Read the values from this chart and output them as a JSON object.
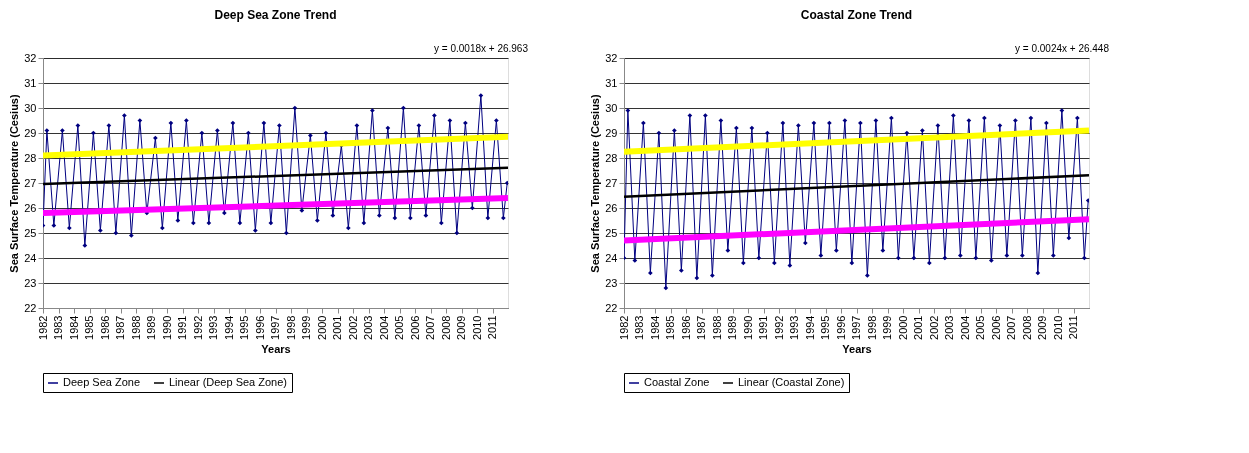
{
  "chart_data": [
    {
      "type": "line",
      "title": "Deep Sea Zone Trend",
      "xlabel": "Years",
      "ylabel": "Sea Surface Temperature (Cesius)",
      "annotations": [
        "y = 0.0018x + 26.963"
      ],
      "xlim": [
        1982,
        2012
      ],
      "xticks": [
        1982,
        1983,
        1984,
        1985,
        1986,
        1987,
        1988,
        1989,
        1990,
        1991,
        1992,
        1993,
        1994,
        1995,
        1996,
        1997,
        1998,
        1999,
        2000,
        2001,
        2002,
        2003,
        2004,
        2005,
        2006,
        2007,
        2008,
        2009,
        2010,
        2011
      ],
      "ylim": [
        22,
        32
      ],
      "yticks": [
        22,
        23,
        24,
        25,
        26,
        27,
        28,
        29,
        30,
        31,
        32
      ],
      "grid": "y",
      "legend": "bottom",
      "series": [
        {
          "name": "Deep Sea Zone",
          "color": "#000080",
          "marker": "diamond",
          "x": [
            1982.0,
            1982.25,
            1982.7,
            1983.25,
            1983.7,
            1984.25,
            1984.7,
            1985.25,
            1985.7,
            1986.25,
            1986.7,
            1987.25,
            1987.7,
            1988.25,
            1988.7,
            1989.25,
            1989.7,
            1990.25,
            1990.7,
            1991.25,
            1991.7,
            1992.25,
            1992.7,
            1993.25,
            1993.7,
            1994.25,
            1994.7,
            1995.25,
            1995.7,
            1996.25,
            1996.7,
            1997.25,
            1997.7,
            1998.25,
            1998.7,
            1999.25,
            1999.7,
            2000.25,
            2000.7,
            2001.25,
            2001.7,
            2002.25,
            2002.7,
            2003.25,
            2003.7,
            2004.25,
            2004.7,
            2005.25,
            2005.7,
            2006.25,
            2006.7,
            2007.25,
            2007.7,
            2008.25,
            2008.7,
            2009.25,
            2009.7,
            2010.25,
            2010.7,
            2011.25,
            2011.7,
            2011.95
          ],
          "values": [
            25.3,
            29.1,
            25.3,
            29.1,
            25.2,
            29.3,
            24.5,
            29.0,
            25.1,
            29.3,
            25.0,
            29.7,
            24.9,
            29.5,
            25.8,
            28.8,
            25.2,
            29.4,
            25.5,
            29.5,
            25.4,
            29.0,
            25.4,
            29.1,
            25.8,
            29.4,
            25.4,
            29.0,
            25.1,
            29.4,
            25.4,
            29.3,
            25.0,
            30.0,
            25.9,
            28.9,
            25.5,
            29.0,
            25.7,
            28.5,
            25.2,
            29.3,
            25.4,
            29.9,
            25.7,
            29.2,
            25.6,
            30.0,
            25.6,
            29.3,
            25.7,
            29.7,
            25.4,
            29.5,
            25.0,
            29.4,
            26.0,
            30.5,
            25.6,
            29.5,
            25.6,
            27.0
          ]
        },
        {
          "name": "Linear (Deep Sea Zone)",
          "color": "#000000",
          "marker": "none",
          "x": [
            1982,
            2012
          ],
          "values": [
            26.96,
            27.61
          ]
        },
        {
          "color": "#ffff00",
          "marker": "none",
          "x": [
            1982,
            2012
          ],
          "values": [
            28.1,
            28.85
          ]
        },
        {
          "color": "#ff00ff",
          "marker": "none",
          "x": [
            1982,
            2012
          ],
          "values": [
            25.8,
            26.4
          ]
        }
      ]
    },
    {
      "type": "line",
      "title": "Coastal Zone Trend",
      "xlabel": "Years",
      "ylabel": "Sea Surface Temperature (Cesius)",
      "annotations": [
        "y = 0.0024x + 26.448"
      ],
      "xlim": [
        1982,
        2012
      ],
      "xticks": [
        1982,
        1983,
        1984,
        1985,
        1986,
        1987,
        1988,
        1989,
        1990,
        1991,
        1992,
        1993,
        1994,
        1995,
        1996,
        1997,
        1998,
        1999,
        2000,
        2001,
        2002,
        2003,
        2004,
        2005,
        2006,
        2007,
        2008,
        2009,
        2010,
        2011
      ],
      "ylim": [
        22,
        32
      ],
      "yticks": [
        22,
        23,
        24,
        25,
        26,
        27,
        28,
        29,
        30,
        31,
        32
      ],
      "grid": "y",
      "legend": "bottom",
      "series": [
        {
          "name": "Coastal Zone",
          "color": "#000080",
          "marker": "diamond",
          "x": [
            1982.0,
            1982.25,
            1982.7,
            1983.25,
            1983.7,
            1984.25,
            1984.7,
            1985.25,
            1985.7,
            1986.25,
            1986.7,
            1987.25,
            1987.7,
            1988.25,
            1988.7,
            1989.25,
            1989.7,
            1990.25,
            1990.7,
            1991.25,
            1991.7,
            1992.25,
            1992.7,
            1993.25,
            1993.7,
            1994.25,
            1994.7,
            1995.25,
            1995.7,
            1996.25,
            1996.7,
            1997.25,
            1997.7,
            1998.25,
            1998.7,
            1999.25,
            1999.7,
            2000.25,
            2000.7,
            2001.25,
            2001.7,
            2002.25,
            2002.7,
            2003.25,
            2003.7,
            2004.25,
            2004.7,
            2005.25,
            2005.7,
            2006.25,
            2006.7,
            2007.25,
            2007.7,
            2008.25,
            2008.7,
            2009.25,
            2009.7,
            2010.25,
            2010.7,
            2011.25,
            2011.7,
            2011.95
          ],
          "values": [
            24.0,
            29.9,
            23.9,
            29.4,
            23.4,
            29.0,
            22.8,
            29.1,
            23.5,
            29.7,
            23.2,
            29.7,
            23.3,
            29.5,
            24.3,
            29.2,
            23.8,
            29.2,
            24.0,
            29.0,
            23.8,
            29.4,
            23.7,
            29.3,
            24.6,
            29.4,
            24.1,
            29.4,
            24.3,
            29.5,
            23.8,
            29.4,
            23.3,
            29.5,
            24.3,
            29.6,
            24.0,
            29.0,
            24.0,
            29.1,
            23.8,
            29.3,
            24.0,
            29.7,
            24.1,
            29.5,
            24.0,
            29.6,
            23.9,
            29.3,
            24.1,
            29.5,
            24.1,
            29.6,
            23.4,
            29.4,
            24.1,
            29.9,
            24.8,
            29.6,
            24.0,
            26.3
          ]
        },
        {
          "name": "Linear (Coastal Zone)",
          "color": "#000000",
          "marker": "none",
          "x": [
            1982,
            2012
          ],
          "values": [
            26.45,
            27.31
          ]
        },
        {
          "color": "#ffff00",
          "marker": "none",
          "x": [
            1982,
            2012
          ],
          "values": [
            28.25,
            29.1
          ]
        },
        {
          "color": "#ff00ff",
          "marker": "none",
          "x": [
            1982,
            2012
          ],
          "values": [
            24.7,
            25.55
          ]
        }
      ]
    }
  ]
}
